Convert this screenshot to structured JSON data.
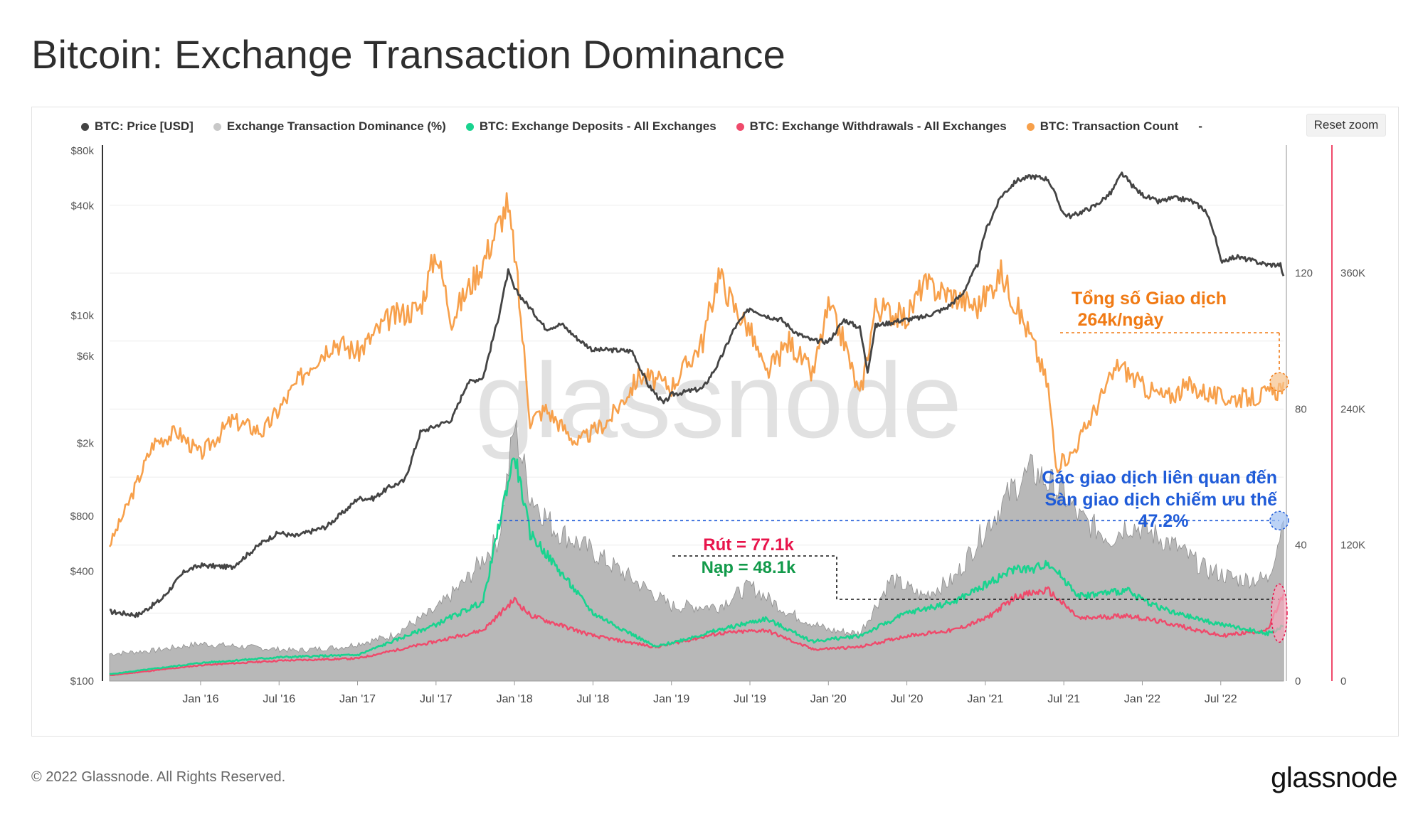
{
  "title": "Bitcoin: Exchange Transaction Dominance",
  "reset_zoom": "Reset zoom",
  "footer": {
    "copyright": "© 2022 Glassnode. All Rights Reserved.",
    "logo": "glassnode"
  },
  "watermark": "glassnode",
  "colors": {
    "price": "#444444",
    "dominance": "#b3b3b3",
    "deposits": "#19d38f",
    "withdrawals": "#ef4a6b",
    "tx_count": "#f7a04b",
    "annotation_blue": "#1f5bd8",
    "annotation_orange": "#f07a14",
    "annotation_red": "#e8144b",
    "annotation_green": "#129a4a"
  },
  "chart_data": {
    "type": "line",
    "title": "Bitcoin: Exchange Transaction Dominance",
    "legend": [
      {
        "name": "BTC: Price [USD]",
        "color": "#444444"
      },
      {
        "name": "Exchange Transaction Dominance (%)",
        "color": "#c8c8c8"
      },
      {
        "name": "BTC: Exchange Deposits - All Exchanges",
        "color": "#19d38f"
      },
      {
        "name": "BTC: Exchange Withdrawals - All Exchanges",
        "color": "#ef4a6b"
      },
      {
        "name": "BTC: Transaction Count",
        "color": "#f7a04b"
      },
      {
        "name": "-",
        "color": ""
      }
    ],
    "x_ticks": [
      "Jan '16",
      "Jul '16",
      "Jan '17",
      "Jul '17",
      "Jan '18",
      "Jul '18",
      "Jan '19",
      "Jul '19",
      "Jan '20",
      "Jul '20",
      "Jan '21",
      "Jul '21",
      "Jan '22",
      "Jul '22"
    ],
    "x_range": [
      2015.42,
      2022.9
    ],
    "y_price_ticks": [
      "$80k",
      "$40k",
      "$10k",
      "$6k",
      "$2k",
      "$800",
      "$400",
      "$100"
    ],
    "y_price_tick_values": [
      80000,
      40000,
      10000,
      6000,
      2000,
      800,
      400,
      100
    ],
    "y_price_range_log": [
      100,
      80000
    ],
    "y_dominance_ticks": [
      "120",
      "80",
      "40",
      "0"
    ],
    "y_dominance_range": [
      0,
      156
    ],
    "y_txcount_ticks": [
      "360K",
      "240K",
      "120K",
      "0"
    ],
    "y_txcount_range": [
      0,
      468000
    ],
    "series": [
      {
        "name": "BTC: Price [USD]",
        "x": [
          2015.42,
          2015.6,
          2015.75,
          2015.9,
          2016.0,
          2016.2,
          2016.4,
          2016.5,
          2016.6,
          2016.8,
          2016.95,
          2017.0,
          2017.1,
          2017.2,
          2017.3,
          2017.4,
          2017.5,
          2017.6,
          2017.7,
          2017.8,
          2017.9,
          2017.96,
          2018.0,
          2018.1,
          2018.2,
          2018.3,
          2018.4,
          2018.5,
          2018.6,
          2018.75,
          2018.85,
          2018.95,
          2019.0,
          2019.2,
          2019.3,
          2019.4,
          2019.5,
          2019.6,
          2019.7,
          2019.8,
          2019.9,
          2020.0,
          2020.1,
          2020.2,
          2020.25,
          2020.3,
          2020.45,
          2020.6,
          2020.75,
          2020.85,
          2020.95,
          2021.0,
          2021.1,
          2021.2,
          2021.3,
          2021.4,
          2021.5,
          2021.55,
          2021.7,
          2021.8,
          2021.87,
          2021.95,
          2022.0,
          2022.1,
          2022.2,
          2022.3,
          2022.4,
          2022.45,
          2022.5,
          2022.6,
          2022.7,
          2022.8,
          2022.88,
          2022.9
        ],
        "values": [
          240,
          230,
          280,
          400,
          430,
          420,
          580,
          650,
          620,
          700,
          900,
          1000,
          1000,
          1150,
          1250,
          2300,
          2500,
          2700,
          4300,
          4600,
          10000,
          17500,
          14000,
          11000,
          8500,
          9000,
          7500,
          6500,
          6500,
          6400,
          4200,
          3300,
          3700,
          4000,
          5500,
          8500,
          11000,
          10000,
          9500,
          8000,
          7300,
          7200,
          9500,
          8600,
          5000,
          8800,
          9400,
          9800,
          11000,
          13000,
          19000,
          29000,
          45000,
          55000,
          58000,
          56000,
          36000,
          35000,
          40000,
          47000,
          60000,
          50000,
          46000,
          42000,
          44000,
          43000,
          38000,
          30000,
          20000,
          21000,
          20000,
          19000,
          19000,
          16500
        ]
      },
      {
        "name": "Exchange Transaction Dominance (%)",
        "x": [
          2015.42,
          2015.7,
          2016.0,
          2016.3,
          2016.6,
          2016.9,
          2017.2,
          2017.5,
          2017.7,
          2017.9,
          2018.0,
          2018.1,
          2018.25,
          2018.5,
          2018.75,
          2019.0,
          2019.3,
          2019.5,
          2019.75,
          2020.0,
          2020.2,
          2020.4,
          2020.6,
          2020.8,
          2021.0,
          2021.2,
          2021.3,
          2021.5,
          2021.6,
          2021.8,
          2021.9,
          2022.0,
          2022.2,
          2022.4,
          2022.6,
          2022.8,
          2022.9
        ],
        "values": [
          8,
          9,
          11,
          10,
          9,
          10,
          13,
          21,
          30,
          42,
          75,
          55,
          45,
          38,
          30,
          22,
          22,
          28,
          20,
          15,
          14,
          30,
          25,
          30,
          45,
          58,
          62,
          55,
          48,
          42,
          46,
          45,
          40,
          33,
          30,
          30,
          47.2
        ]
      },
      {
        "name": "BTC: Exchange Deposits - All Exchanges",
        "x": [
          2015.42,
          2016.0,
          2016.5,
          2017.0,
          2017.5,
          2017.8,
          2017.95,
          2018.0,
          2018.1,
          2018.5,
          2018.9,
          2019.3,
          2019.6,
          2019.9,
          2020.2,
          2020.5,
          2020.8,
          2021.0,
          2021.2,
          2021.3,
          2021.4,
          2021.6,
          2021.9,
          2022.0,
          2022.2,
          2022.5,
          2022.8,
          2022.9
        ],
        "values": [
          6000,
          16000,
          21000,
          23000,
          50000,
          70000,
          170000,
          200000,
          130000,
          60000,
          30000,
          45000,
          55000,
          35000,
          40000,
          60000,
          70000,
          85000,
          100000,
          98000,
          105000,
          75000,
          80000,
          72000,
          60000,
          50000,
          42000,
          48100
        ]
      },
      {
        "name": "BTC: Exchange Withdrawals - All Exchanges",
        "x": [
          2015.42,
          2016.0,
          2016.5,
          2017.0,
          2017.5,
          2017.8,
          2018.0,
          2018.1,
          2018.5,
          2018.9,
          2019.3,
          2019.6,
          2019.9,
          2020.2,
          2020.5,
          2020.8,
          2021.0,
          2021.2,
          2021.4,
          2021.6,
          2021.9,
          2022.2,
          2022.5,
          2022.8,
          2022.9
        ],
        "values": [
          5000,
          14000,
          18000,
          20000,
          35000,
          45000,
          72000,
          58000,
          40000,
          30000,
          42000,
          45000,
          28000,
          30000,
          40000,
          45000,
          55000,
          75000,
          80000,
          55000,
          58000,
          50000,
          40000,
          45000,
          77100
        ]
      },
      {
        "name": "BTC: Transaction Count",
        "x": [
          2015.42,
          2015.55,
          2015.7,
          2015.85,
          2016.0,
          2016.2,
          2016.4,
          2016.5,
          2016.7,
          2016.85,
          2017.0,
          2017.2,
          2017.4,
          2017.5,
          2017.6,
          2017.8,
          2017.95,
          2018.0,
          2018.1,
          2018.2,
          2018.4,
          2018.5,
          2018.6,
          2018.8,
          2019.0,
          2019.2,
          2019.3,
          2019.4,
          2019.5,
          2019.6,
          2019.75,
          2019.9,
          2020.0,
          2020.1,
          2020.2,
          2020.3,
          2020.5,
          2020.6,
          2020.8,
          2020.95,
          2021.1,
          2021.3,
          2021.4,
          2021.45,
          2021.55,
          2021.7,
          2021.85,
          2022.0,
          2022.15,
          2022.3,
          2022.5,
          2022.7,
          2022.85,
          2022.9
        ],
        "values": [
          120000,
          160000,
          210000,
          220000,
          200000,
          230000,
          220000,
          240000,
          280000,
          300000,
          290000,
          320000,
          330000,
          380000,
          320000,
          370000,
          420000,
          380000,
          230000,
          240000,
          210000,
          220000,
          230000,
          270000,
          260000,
          300000,
          360000,
          330000,
          310000,
          270000,
          300000,
          270000,
          330000,
          300000,
          250000,
          330000,
          320000,
          350000,
          340000,
          330000,
          360000,
          300000,
          260000,
          190000,
          200000,
          240000,
          280000,
          260000,
          250000,
          260000,
          250000,
          250000,
          255000,
          264000
        ]
      }
    ],
    "annotations": [
      {
        "text_line1": "Tổng số Giao dịch",
        "text_line2": "264k/ngày"
      },
      {
        "text_line1": "Các giao dịch liên quan đến",
        "text_line2": "Sàn giao dịch chiếm ưu thế",
        "text_line3": "47.2%"
      },
      {
        "text_line1": "Rút = 77.1k",
        "text_line2": "Nạp = 48.1k"
      }
    ]
  }
}
